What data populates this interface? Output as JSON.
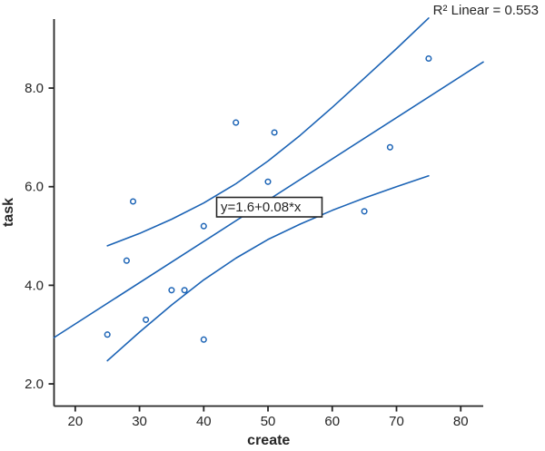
{
  "chart_data": {
    "type": "scatter",
    "title": "",
    "xlabel": "create",
    "ylabel": "task",
    "annotation_r2": "R² Linear = 0.553",
    "equation_label": "y=1.6+0.08*x",
    "regression": {
      "intercept": 1.6,
      "slope": 0.08,
      "r2": 0.553
    },
    "x_ticks": [
      "20",
      "30",
      "40",
      "50",
      "60",
      "70",
      "80"
    ],
    "x_tick_values": [
      20,
      30,
      40,
      50,
      60,
      70,
      80
    ],
    "y_ticks": [
      "2.0",
      "4.0",
      "6.0",
      "8.0"
    ],
    "y_tick_values": [
      2,
      4,
      6,
      8
    ],
    "xlim": [
      16.7,
      83.5
    ],
    "ylim": [
      1.55,
      9.4
    ],
    "grid": false,
    "legend": null,
    "points": [
      [
        25,
        3.0
      ],
      [
        28,
        4.5
      ],
      [
        29,
        5.7
      ],
      [
        31,
        3.3
      ],
      [
        35,
        3.9
      ],
      [
        37,
        3.9
      ],
      [
        40,
        2.9
      ],
      [
        40,
        5.2
      ],
      [
        45,
        7.3
      ],
      [
        50,
        6.1
      ],
      [
        51,
        7.1
      ],
      [
        65,
        5.5
      ],
      [
        69,
        6.8
      ],
      [
        75,
        8.6
      ]
    ],
    "fit_line_points": [
      [
        16.7,
        2.94
      ],
      [
        83.5,
        8.53
      ]
    ],
    "ci_upper": [
      [
        25,
        4.8
      ],
      [
        30,
        5.05
      ],
      [
        35,
        5.34
      ],
      [
        40,
        5.67
      ],
      [
        45,
        6.06
      ],
      [
        50,
        6.52
      ],
      [
        55,
        7.04
      ],
      [
        60,
        7.61
      ],
      [
        65,
        8.2
      ],
      [
        70,
        8.8
      ],
      [
        75,
        9.42
      ]
    ],
    "ci_lower": [
      [
        25,
        2.47
      ],
      [
        30,
        3.05
      ],
      [
        35,
        3.6
      ],
      [
        40,
        4.11
      ],
      [
        45,
        4.55
      ],
      [
        50,
        4.93
      ],
      [
        55,
        5.24
      ],
      [
        60,
        5.52
      ],
      [
        65,
        5.77
      ],
      [
        70,
        6.0
      ],
      [
        75,
        6.22
      ]
    ],
    "marker": "open-circle",
    "colors": {
      "series": "#1b63b5",
      "axis": "#262626",
      "text": "#262626",
      "background": "#ffffff"
    }
  }
}
